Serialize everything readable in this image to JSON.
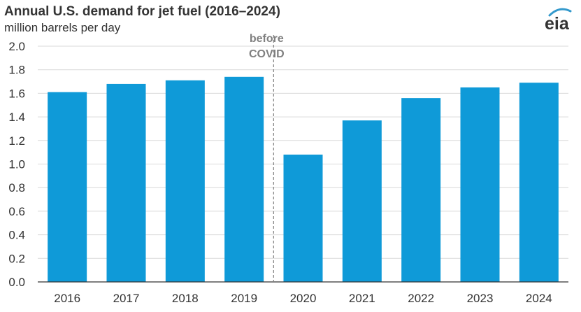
{
  "header": {
    "title": "Annual U.S. demand for jet fuel (2016–2024)",
    "subtitle": "million barrels per day"
  },
  "logo": {
    "text": "eia",
    "icon": "eia-logo-icon",
    "color": "#3399cc"
  },
  "colors": {
    "bar": "#0f9ad8",
    "grid": "#d9d9d9",
    "axis": "#333333",
    "annotation": "#808080"
  },
  "chart_data": {
    "type": "bar",
    "title": "Annual U.S. demand for jet fuel (2016–2024)",
    "subtitle": "million barrels per day",
    "ylabel": "million barrels per day",
    "xlabel": "",
    "categories": [
      "2016",
      "2017",
      "2018",
      "2019",
      "2020",
      "2021",
      "2022",
      "2023",
      "2024"
    ],
    "values": [
      1.61,
      1.68,
      1.71,
      1.74,
      1.08,
      1.37,
      1.56,
      1.65,
      1.69
    ],
    "ylim": [
      0,
      2.0
    ],
    "yticks": [
      "0.0",
      "0.2",
      "0.4",
      "0.6",
      "0.8",
      "1.0",
      "1.2",
      "1.4",
      "1.6",
      "1.8",
      "2.0"
    ],
    "grid": true,
    "annotation": {
      "lines": [
        "before",
        "COVID"
      ],
      "after_category": "2019",
      "style": "dashed-vertical-line"
    }
  }
}
